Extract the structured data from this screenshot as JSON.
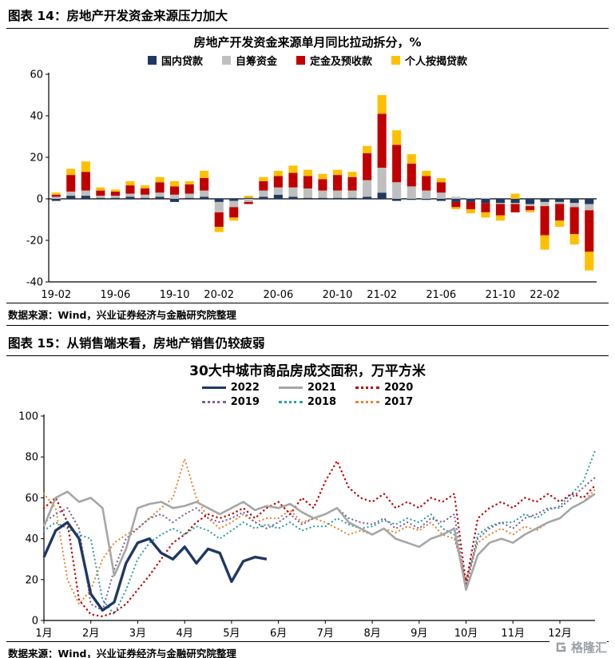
{
  "figure14": {
    "title": "图表 14：房地产开发资金来源压力加大",
    "source": "数据来源：Wind，兴业证券经济与金融研究院整理"
  },
  "figure15": {
    "title": "图表 15：从销售端来看，房地产销售仍较疲弱",
    "source": "数据来源：Wind，兴业证券经济与金融研究院整理"
  },
  "logo": {
    "text": "格隆汇"
  },
  "chart_data": [
    {
      "type": "bar",
      "stacked": true,
      "title": "房地产开发资金来源单月同比拉动拆分，%",
      "ylim": [
        -40,
        60
      ],
      "y_ticks": [
        -40,
        -20,
        0,
        20,
        40,
        60
      ],
      "grid": false,
      "legend_position": "top",
      "categories": [
        "19-02",
        "19-03",
        "19-04",
        "19-05",
        "19-06",
        "19-07",
        "19-08",
        "19-09",
        "19-10",
        "19-11",
        "19-12",
        "20-02",
        "20-03",
        "20-04",
        "20-05",
        "20-06",
        "20-07",
        "20-08",
        "20-09",
        "20-10",
        "20-11",
        "20-12",
        "21-02",
        "21-03",
        "21-04",
        "21-05",
        "21-06",
        "21-07",
        "21-08",
        "21-09",
        "21-10",
        "21-11",
        "21-12",
        "22-02",
        "22-03",
        "22-04",
        "22-05"
      ],
      "x_tick_labels": [
        "19-02",
        "19-06",
        "19-10",
        "20-02",
        "20-06",
        "20-10",
        "21-02",
        "21-06",
        "21-10",
        "22-02"
      ],
      "series": [
        {
          "name": "国内贷款",
          "color": "#1F3864",
          "values": [
            -1,
            1.5,
            1.5,
            0.5,
            0.5,
            1,
            0.5,
            1,
            -1.5,
            0.5,
            1,
            -1.5,
            -1,
            0.5,
            1,
            2,
            1,
            0.5,
            0.5,
            0.5,
            0.5,
            1,
            3,
            -1,
            -0.5,
            -0.5,
            -1,
            -1.5,
            -1.5,
            -2,
            -2,
            -2,
            -2.5,
            -1.5,
            -1.5,
            -2,
            -2.5
          ]
        },
        {
          "name": "自筹资金",
          "color": "#BFBFBF",
          "values": [
            1,
            2,
            2.5,
            1,
            1,
            1.5,
            1.5,
            2,
            2,
            2,
            3,
            -5,
            -3,
            -1.5,
            3,
            3.5,
            4.5,
            4.5,
            3.5,
            3.5,
            3.5,
            8,
            12,
            8,
            6,
            4,
            3,
            1,
            0.5,
            0.5,
            -0.5,
            -0.5,
            -1,
            -2,
            -1,
            -2,
            -3
          ]
        },
        {
          "name": "定金及预收款",
          "color": "#C00000",
          "values": [
            1,
            8,
            9,
            2.5,
            2,
            4,
            3,
            5,
            4,
            4.5,
            6,
            -7,
            -5,
            -1,
            4.5,
            5.5,
            7,
            6,
            5.5,
            7.5,
            6.5,
            13,
            26,
            18,
            11,
            7,
            5,
            -2.5,
            -3.5,
            -4.5,
            -5.5,
            -4,
            -2,
            -14,
            -8,
            -13,
            -20
          ]
        },
        {
          "name": "个人按揭贷款",
          "color": "#FFC000",
          "values": [
            1,
            3,
            5,
            1.5,
            1,
            2,
            1.5,
            2.5,
            2.5,
            1.5,
            3.5,
            -2.5,
            -1.5,
            1,
            2,
            2.5,
            3.5,
            3,
            2.5,
            2.5,
            2.5,
            3.5,
            9,
            7,
            4.5,
            2.5,
            2,
            -1,
            -2,
            -2.5,
            -2.5,
            2.5,
            -1,
            -7,
            -3,
            -5,
            -9
          ]
        }
      ]
    },
    {
      "type": "line",
      "title": "30大中城市商品房成交面积，万平方米",
      "ylim": [
        0,
        100
      ],
      "y_ticks": [
        0,
        20,
        40,
        60,
        80,
        100
      ],
      "grid": false,
      "legend_position": "top",
      "points_per_month": 4,
      "x_tick_labels": [
        "1月",
        "2月",
        "3月",
        "4月",
        "5月",
        "6月",
        "7月",
        "8月",
        "9月",
        "10月",
        "11月",
        "12月"
      ],
      "series": [
        {
          "name": "2022",
          "color": "#1F3864",
          "style": "solid",
          "width": 3.4,
          "values": [
            31,
            44,
            48,
            40,
            13,
            5,
            9,
            28,
            38,
            40,
            33,
            30,
            36,
            28,
            35,
            33,
            19,
            29,
            31,
            30,
            null,
            null,
            null,
            null,
            null,
            null,
            null,
            null,
            null,
            null,
            null,
            null,
            null,
            null,
            null,
            null,
            null,
            null,
            null,
            null,
            null,
            null,
            null,
            null,
            null,
            null,
            null,
            null
          ]
        },
        {
          "name": "2021",
          "color": "#A6A6A6",
          "style": "solid",
          "width": 2.6,
          "values": [
            46,
            60,
            63,
            58,
            60,
            55,
            22,
            35,
            55,
            57,
            58,
            55,
            56,
            58,
            55,
            52,
            55,
            58,
            54,
            56,
            55,
            57,
            53,
            50,
            52,
            55,
            48,
            45,
            42,
            45,
            40,
            38,
            36,
            40,
            42,
            45,
            15,
            32,
            38,
            40,
            38,
            42,
            45,
            48,
            50,
            55,
            58,
            62
          ]
        },
        {
          "name": "2020",
          "color": "#C00000",
          "style": "dotted",
          "width": 2.4,
          "values": [
            55,
            60,
            48,
            10,
            3,
            2,
            4,
            8,
            15,
            22,
            30,
            38,
            42,
            48,
            52,
            50,
            52,
            55,
            50,
            55,
            58,
            52,
            60,
            55,
            68,
            78,
            65,
            60,
            58,
            62,
            55,
            58,
            55,
            60,
            58,
            62,
            18,
            50,
            55,
            58,
            55,
            60,
            58,
            62,
            58,
            62,
            60,
            66
          ]
        },
        {
          "name": "2019",
          "color": "#7D5FA0",
          "style": "dotted",
          "width": 2.2,
          "values": [
            48,
            52,
            55,
            45,
            8,
            5,
            25,
            40,
            45,
            50,
            52,
            48,
            52,
            55,
            50,
            48,
            50,
            53,
            48,
            45,
            48,
            52,
            47,
            50,
            52,
            55,
            50,
            48,
            47,
            50,
            45,
            48,
            45,
            50,
            48,
            52,
            16,
            40,
            45,
            48,
            45,
            50,
            52,
            55,
            55,
            60,
            65,
            70
          ]
        },
        {
          "name": "2018",
          "color": "#2AA0A5",
          "style": "dotted",
          "width": 2.2,
          "values": [
            44,
            48,
            45,
            42,
            40,
            10,
            3,
            15,
            30,
            38,
            42,
            45,
            42,
            46,
            44,
            40,
            44,
            48,
            45,
            47,
            45,
            48,
            44,
            46,
            46,
            50,
            47,
            45,
            46,
            49,
            47,
            50,
            48,
            52,
            45,
            42,
            18,
            42,
            46,
            48,
            48,
            52,
            50,
            54,
            56,
            62,
            68,
            83
          ]
        },
        {
          "name": "2017",
          "color": "#E8862E",
          "style": "dotted",
          "width": 2.2,
          "values": [
            62,
            55,
            20,
            8,
            15,
            30,
            38,
            42,
            45,
            50,
            55,
            60,
            79,
            60,
            50,
            45,
            48,
            52,
            48,
            50,
            50,
            54,
            48,
            50,
            48,
            45,
            42,
            44,
            42,
            45,
            43,
            46,
            44,
            48,
            42,
            40,
            20,
            38,
            42,
            45,
            42,
            46,
            44,
            48,
            50,
            55,
            58,
            64
          ]
        }
      ]
    }
  ]
}
